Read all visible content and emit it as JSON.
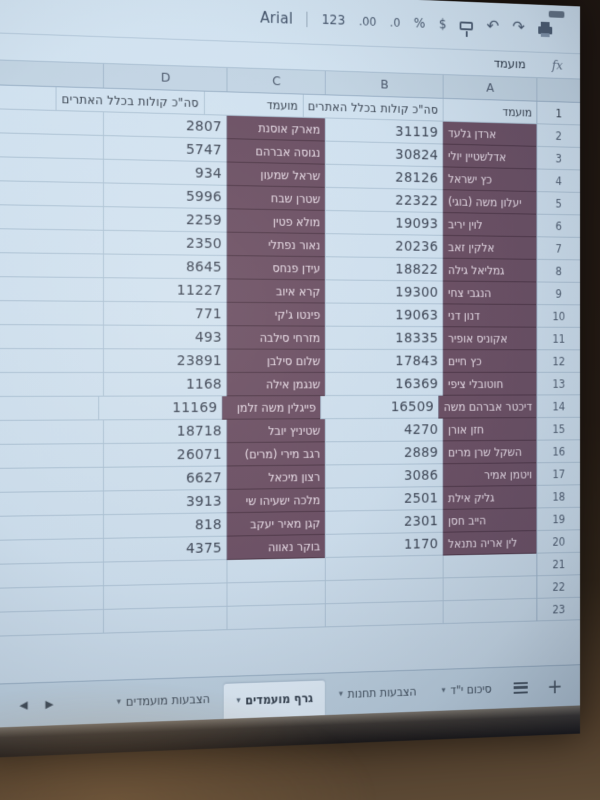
{
  "colors": {
    "highlight_cell": "#6d4c61",
    "sheet_bg": "#d0e1ef",
    "active_tab": "#e4f0fa",
    "wall": "#241a13"
  },
  "toolbar": {
    "font_name": "Arial",
    "format_label": "123",
    "decimal_decrease": ".00",
    "decimal_increase": ".0",
    "percent_label": "%",
    "currency_label": "$"
  },
  "formula_bar": {
    "fx_label": "fx",
    "value": "מועמד"
  },
  "column_letters": {
    "d": "D",
    "c": "C",
    "b": "B",
    "a": "A"
  },
  "grid": {
    "rows": [
      {
        "num": "1",
        "header": true,
        "hl": false,
        "a_name": "מועמד",
        "b_val": "סה\"כ קולות בכלל האתרים",
        "c_name": "מועמד",
        "d_val": "סה\"כ קולות בכלל האתרים"
      },
      {
        "num": "2",
        "header": false,
        "hl": true,
        "a_name": "ארדן גלעד",
        "b_val": "31119",
        "c_name": "מארק אוסנת",
        "d_val": "2807"
      },
      {
        "num": "3",
        "header": false,
        "hl": true,
        "a_name": "אדלשטיין יולי",
        "b_val": "30824",
        "c_name": "נגוסה אברהם",
        "d_val": "5747"
      },
      {
        "num": "4",
        "header": false,
        "hl": true,
        "a_name": "כץ ישראל",
        "b_val": "28126",
        "c_name": "שראל שמעון",
        "d_val": "934"
      },
      {
        "num": "5",
        "header": false,
        "hl": true,
        "a_name": "יעלון משה (בוגי)",
        "b_val": "22322",
        "c_name": "שטרן שבח",
        "d_val": "5996"
      },
      {
        "num": "6",
        "header": false,
        "hl": true,
        "a_name": "לוין יריב",
        "b_val": "19093",
        "c_name": "מולא פטין",
        "d_val": "2259"
      },
      {
        "num": "7",
        "header": false,
        "hl": true,
        "a_name": "אלקין זאב",
        "b_val": "20236",
        "c_name": "נאור נפתלי",
        "d_val": "2350"
      },
      {
        "num": "8",
        "header": false,
        "hl": true,
        "a_name": "גמליאל גילה",
        "b_val": "18822",
        "c_name": "עידן פנחס",
        "d_val": "8645"
      },
      {
        "num": "9",
        "header": false,
        "hl": true,
        "a_name": "הנגבי צחי",
        "b_val": "19300",
        "c_name": "קרא איוב",
        "d_val": "11227"
      },
      {
        "num": "10",
        "header": false,
        "hl": true,
        "a_name": "דנון דני",
        "b_val": "19063",
        "c_name": "פינטו ג'קי",
        "d_val": "771"
      },
      {
        "num": "11",
        "header": false,
        "hl": true,
        "a_name": "אקוניס אופיר",
        "b_val": "18335",
        "c_name": "מזרחי סילבה",
        "d_val": "493"
      },
      {
        "num": "12",
        "header": false,
        "hl": true,
        "a_name": "כץ חיים",
        "b_val": "17843",
        "c_name": "שלום סילבן",
        "d_val": "23891"
      },
      {
        "num": "13",
        "header": false,
        "hl": true,
        "a_name": "חוטובלי ציפי",
        "b_val": "16369",
        "c_name": "שנגמן אילה",
        "d_val": "1168"
      },
      {
        "num": "14",
        "header": false,
        "hl": true,
        "a_name": "דיכטר אברהם משה",
        "b_val": "16509",
        "c_name": "פייגלין משה זלמן",
        "d_val": "11169"
      },
      {
        "num": "15",
        "header": false,
        "hl": true,
        "a_name": "חזן אורן",
        "b_val": "4270",
        "c_name": "שטיניץ יובל",
        "d_val": "18718"
      },
      {
        "num": "16",
        "header": false,
        "hl": true,
        "a_name": "השקל שרן מרים",
        "b_val": "2889",
        "c_name": "רגב מירי (מרים)",
        "d_val": "26071"
      },
      {
        "num": "17",
        "header": false,
        "hl": true,
        "a_align": "right",
        "a_name": "ויטמן אמיר",
        "b_val": "3086",
        "c_name": "רצון מיכאל",
        "d_val": "6627"
      },
      {
        "num": "18",
        "header": false,
        "hl": true,
        "a_name": "גליק אילת",
        "b_val": "2501",
        "c_name": "מלכה ישעיהו שי",
        "d_val": "3913"
      },
      {
        "num": "19",
        "header": false,
        "hl": true,
        "a_name": "הייב חסן",
        "b_val": "2301",
        "c_name": "קגן מאיר יעקב",
        "d_val": "818"
      },
      {
        "num": "20",
        "header": false,
        "hl": true,
        "a_name": "לין אריה נתנאל",
        "b_val": "1170",
        "c_name": "בוקר נאווה",
        "d_val": "4375"
      },
      {
        "num": "21",
        "header": false,
        "hl": false,
        "a_name": "",
        "b_val": "",
        "c_name": "",
        "d_val": ""
      },
      {
        "num": "22",
        "header": false,
        "hl": false,
        "a_name": "",
        "b_val": "",
        "c_name": "",
        "d_val": ""
      },
      {
        "num": "23",
        "header": false,
        "hl": false,
        "a_name": "",
        "b_val": "",
        "c_name": "",
        "d_val": ""
      }
    ]
  },
  "tabs": {
    "add_label": "+",
    "items": [
      {
        "label": "סיכום י\"ד",
        "active": false
      },
      {
        "label": "הצבעות תחנות",
        "active": false
      },
      {
        "label": "גרף מועמדים",
        "active": true
      },
      {
        "label": "הצבעות מועמדים",
        "active": false
      }
    ],
    "caret": "▾",
    "nav_right": "▶",
    "nav_left": "◀"
  }
}
